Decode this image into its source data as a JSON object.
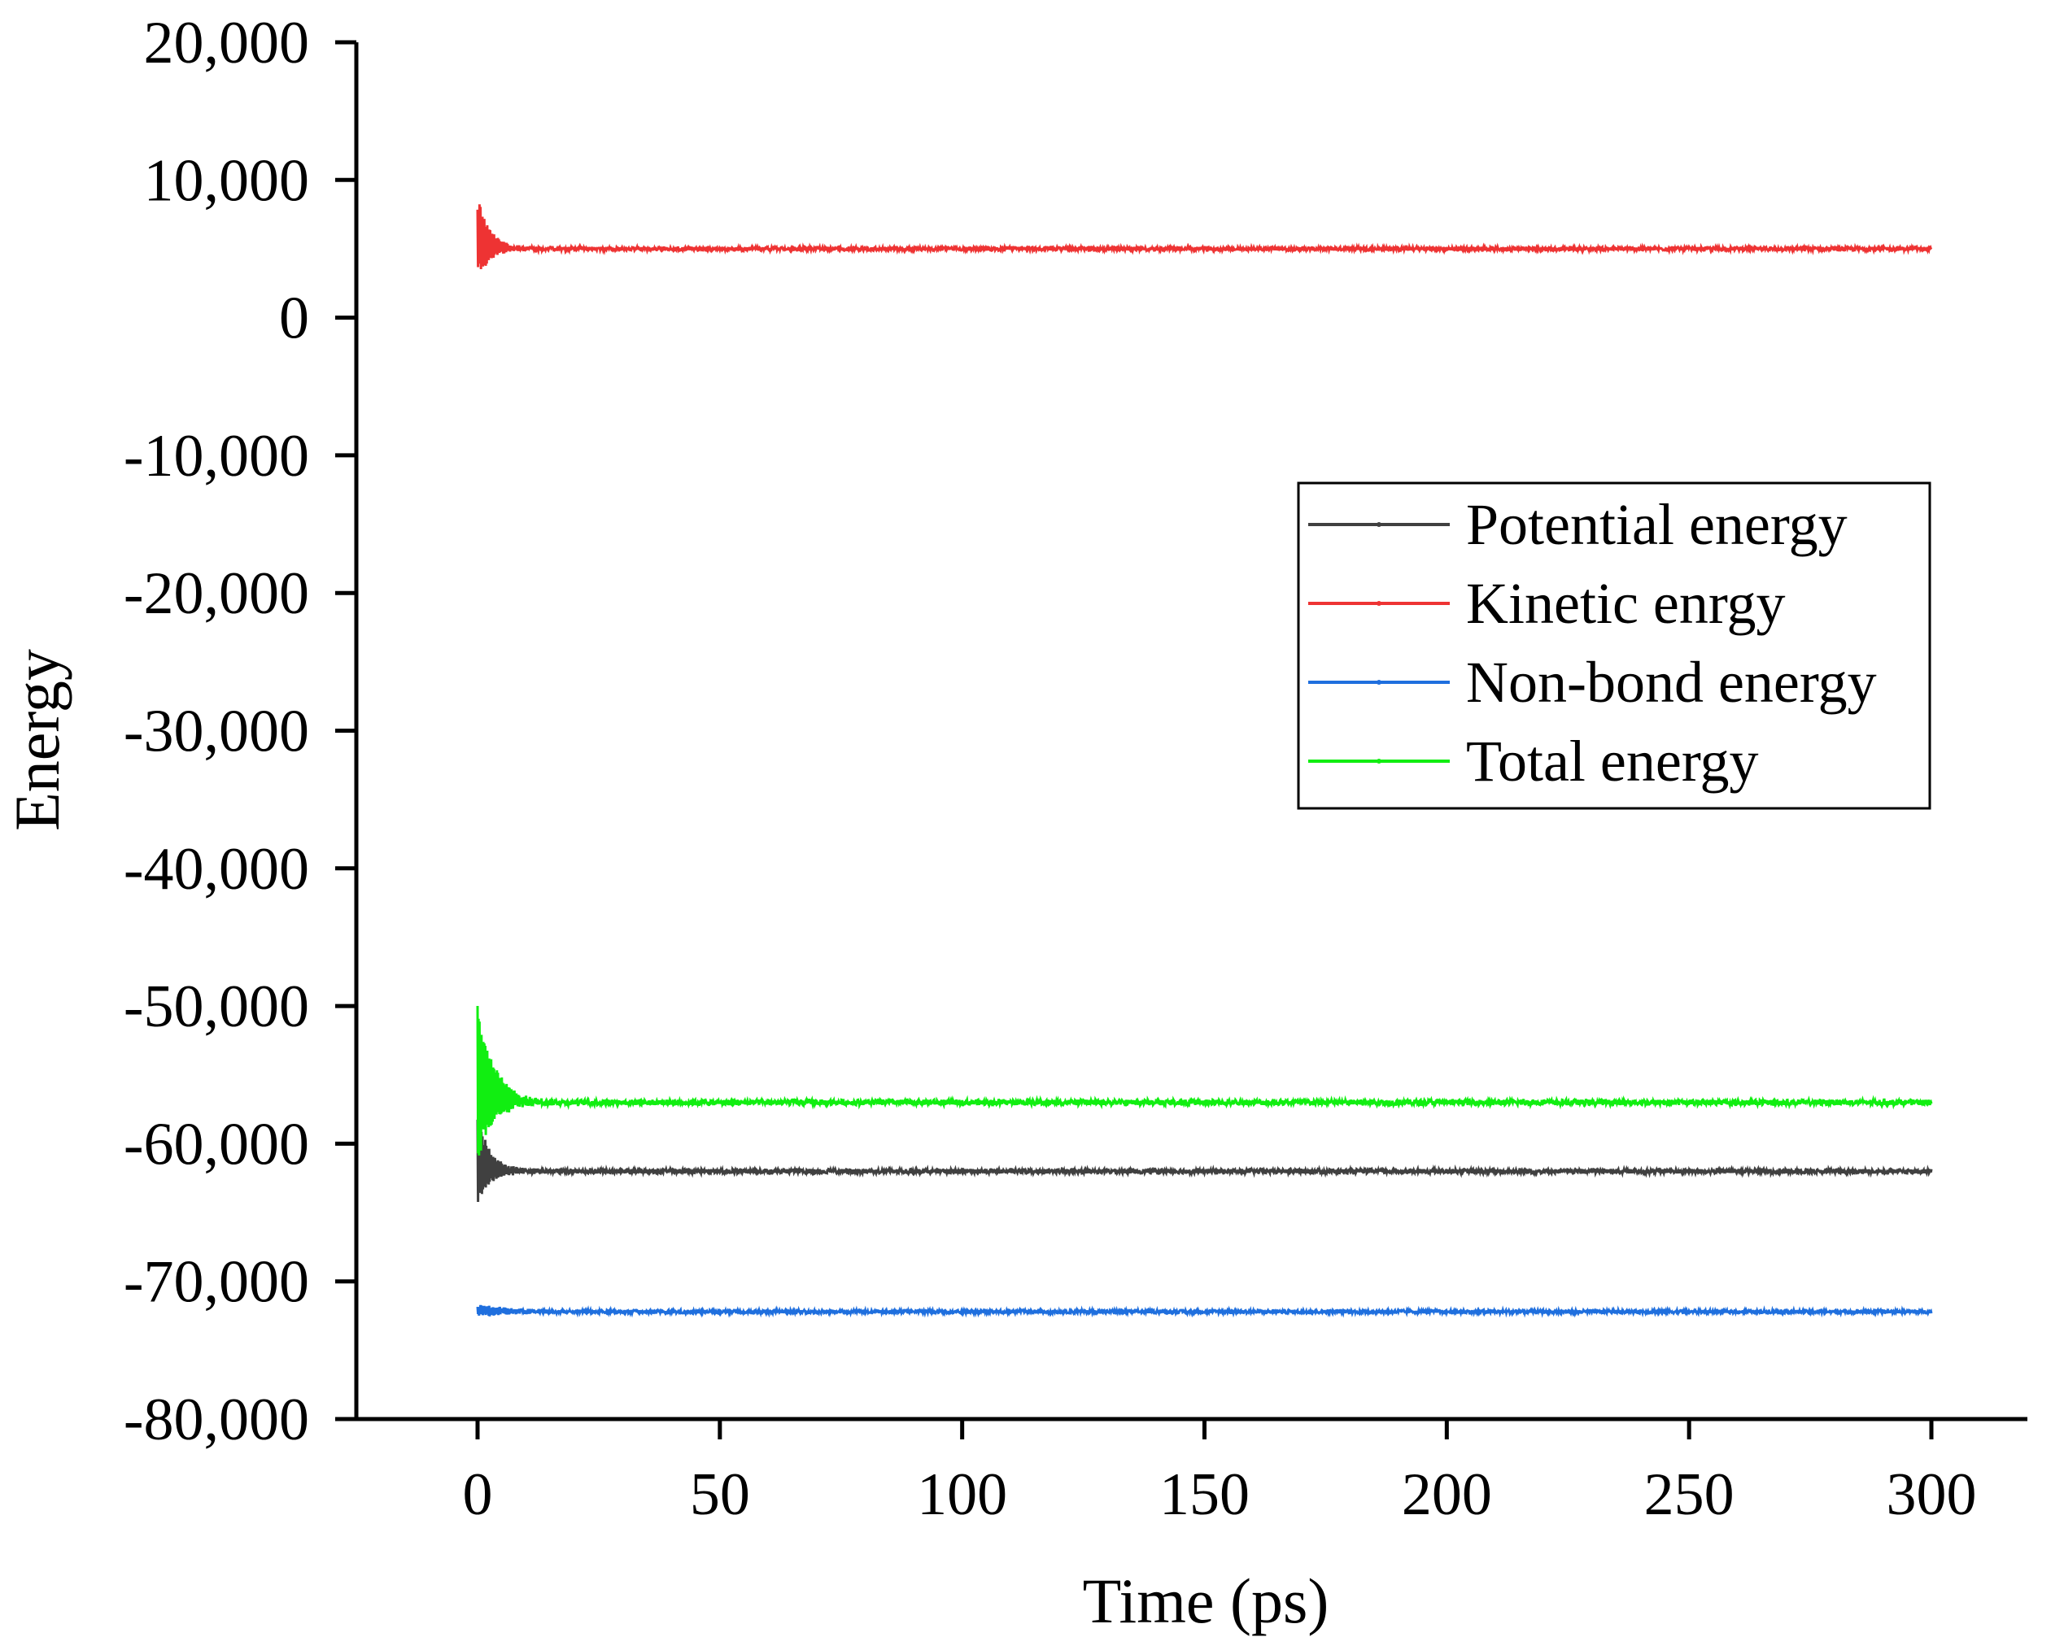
{
  "chart_data": {
    "type": "line",
    "title": "",
    "xlabel": "Time (ps)",
    "ylabel": "Energy",
    "xlim": [
      -25,
      325
    ],
    "ylim": [
      -80000,
      20000
    ],
    "xticks": [
      0,
      50,
      100,
      150,
      200,
      250,
      300
    ],
    "xtick_labels": [
      "0",
      "50",
      "100",
      "150",
      "200",
      "250",
      "300"
    ],
    "yticks": [
      20000,
      10000,
      0,
      -10000,
      -20000,
      -30000,
      -40000,
      -50000,
      -60000,
      -70000,
      -80000
    ],
    "ytick_labels": [
      "20,000",
      "10,000",
      "0",
      "-10,000",
      "-20,000",
      "-30,000",
      "-40,000",
      "-50,000",
      "-60,000",
      "-70,000",
      "-80,000"
    ],
    "grid": false,
    "legend_position": "center-right",
    "series": [
      {
        "name": "Potential energy",
        "color": "#404040",
        "steady": -62000,
        "start_min": -64500,
        "start_max": -58000,
        "settle_time": 8,
        "noise": 160
      },
      {
        "name": "Kinetic enrgy",
        "color": "#ee3333",
        "steady": 5000,
        "start_min": 2700,
        "start_max": 8800,
        "settle_time": 8,
        "noise": 130
      },
      {
        "name": "Non-bond energy",
        "color": "#1f6fde",
        "steady": -72200,
        "start_min": -72600,
        "start_max": -71700,
        "settle_time": 20,
        "noise": 120
      },
      {
        "name": "Total energy",
        "color": "#11ee11",
        "steady": -57000,
        "start_min": -61500,
        "start_max": -49500,
        "settle_time": 10,
        "noise": 200
      }
    ]
  }
}
